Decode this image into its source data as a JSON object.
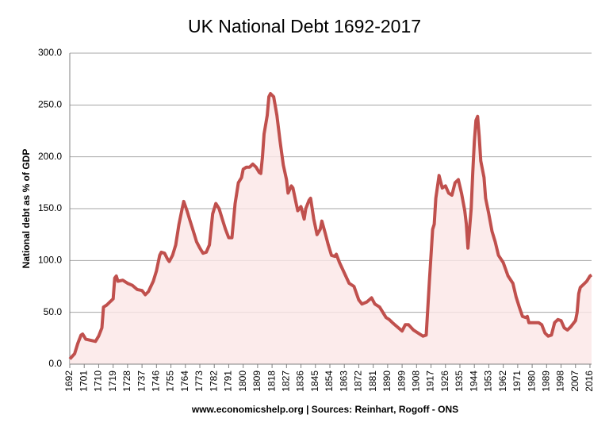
{
  "chart_data": {
    "type": "line",
    "title": "UK National Debt 1692-2017",
    "ylabel": "National debt as % of GDP",
    "source": "www.economicshelp.org | Sources: Reinhart, Rogoff - ONS",
    "x": [
      1692,
      1695,
      1697,
      1699,
      1700,
      1702,
      1705,
      1708,
      1710,
      1712,
      1713,
      1715,
      1717,
      1719,
      1720,
      1721,
      1722,
      1725,
      1728,
      1731,
      1734,
      1737,
      1739,
      1741,
      1744,
      1746,
      1748,
      1749,
      1751,
      1753,
      1754,
      1756,
      1758,
      1760,
      1762,
      1763,
      1765,
      1767,
      1769,
      1771,
      1773,
      1775,
      1777,
      1779,
      1781,
      1783,
      1785,
      1787,
      1789,
      1791,
      1793,
      1795,
      1797,
      1799,
      1800,
      1802,
      1804,
      1806,
      1808,
      1810,
      1811,
      1812,
      1813,
      1815,
      1816,
      1817,
      1819,
      1821,
      1823,
      1825,
      1827,
      1828,
      1830,
      1831,
      1833,
      1834,
      1836,
      1838,
      1839,
      1841,
      1842,
      1844,
      1846,
      1848,
      1849,
      1851,
      1853,
      1855,
      1857,
      1858,
      1860,
      1863,
      1866,
      1869,
      1872,
      1874,
      1877,
      1880,
      1882,
      1885,
      1887,
      1889,
      1891,
      1893,
      1896,
      1899,
      1901,
      1903,
      1906,
      1909,
      1912,
      1914,
      1916,
      1918,
      1919,
      1920,
      1922,
      1924,
      1926,
      1928,
      1930,
      1932,
      1934,
      1936,
      1938,
      1939,
      1940,
      1941,
      1942,
      1943,
      1944,
      1945,
      1946,
      1947,
      1948,
      1950,
      1951,
      1953,
      1955,
      1957,
      1959,
      1962,
      1965,
      1968,
      1970,
      1972,
      1974,
      1976,
      1977,
      1978,
      1981,
      1984,
      1986,
      1988,
      1990,
      1992,
      1994,
      1996,
      1998,
      2000,
      2002,
      2004,
      2007,
      2008,
      2009,
      2010,
      2012,
      2014,
      2016,
      2017
    ],
    "series": [
      {
        "name": "National debt as % of GDP",
        "color": "#c0504d",
        "values": [
          5,
          10,
          20,
          28,
          29,
          24,
          23,
          22,
          27,
          35,
          55,
          57,
          60,
          63,
          83,
          85,
          80,
          81,
          78,
          76,
          72,
          71,
          67,
          70,
          80,
          90,
          105,
          108,
          107,
          101,
          99,
          105,
          115,
          135,
          150,
          157,
          148,
          138,
          128,
          118,
          112,
          107,
          108,
          115,
          145,
          155,
          150,
          140,
          130,
          122,
          122,
          155,
          175,
          180,
          188,
          190,
          190,
          193,
          190,
          185,
          184,
          200,
          222,
          240,
          258,
          261,
          258,
          240,
          215,
          192,
          178,
          165,
          172,
          170,
          155,
          148,
          152,
          140,
          150,
          158,
          160,
          140,
          125,
          130,
          138,
          127,
          115,
          105,
          104,
          106,
          98,
          88,
          78,
          75,
          62,
          58,
          60,
          64,
          58,
          55,
          50,
          45,
          43,
          40,
          36,
          32,
          38,
          38,
          33,
          30,
          27,
          28,
          80,
          130,
          135,
          160,
          182,
          170,
          172,
          165,
          163,
          175,
          178,
          165,
          148,
          135,
          112,
          130,
          150,
          185,
          215,
          235,
          239,
          220,
          196,
          180,
          160,
          145,
          128,
          118,
          105,
          98,
          85,
          78,
          65,
          55,
          46,
          45,
          46,
          40,
          40,
          40,
          38,
          30,
          27,
          28,
          40,
          43,
          42,
          35,
          33,
          36,
          42,
          50,
          68,
          74,
          77,
          80,
          85,
          86
        ]
      }
    ],
    "xlim": [
      1692,
      2017
    ],
    "xticks": [
      1692,
      1701,
      1710,
      1719,
      1728,
      1737,
      1746,
      1755,
      1764,
      1773,
      1782,
      1791,
      1800,
      1809,
      1818,
      1827,
      1836,
      1845,
      1854,
      1863,
      1872,
      1881,
      1890,
      1899,
      1908,
      1917,
      1926,
      1935,
      1944,
      1953,
      1962,
      1971,
      1980,
      1989,
      1998,
      2007,
      2016
    ],
    "ylim": [
      0,
      300
    ],
    "yticks": [
      {
        "value": 0,
        "label": "0.0"
      },
      {
        "value": 50,
        "label": "50.0"
      },
      {
        "value": 100,
        "label": "100.0"
      },
      {
        "value": 150,
        "label": "150.0"
      },
      {
        "value": 200,
        "label": "200.0"
      },
      {
        "value": 250,
        "label": "250.0"
      },
      {
        "value": 300,
        "label": "300.0"
      }
    ],
    "grid": true
  }
}
